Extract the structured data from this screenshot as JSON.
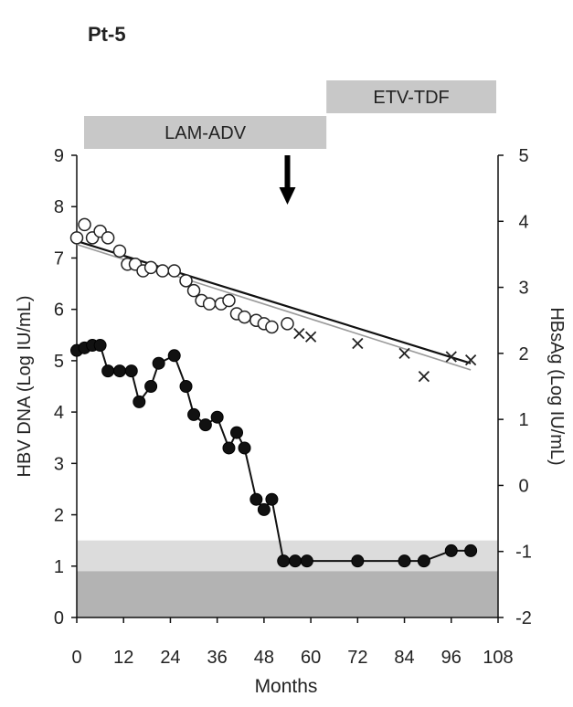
{
  "chart_data": {
    "type": "scatter",
    "title": "Pt-5",
    "xlabel": "Months",
    "ylabel_left": "HBV DNA (Log IU/mL)",
    "ylabel_right": "HBsAg (Log IU/mL)",
    "xlim": [
      0,
      108
    ],
    "xticks": [
      0,
      12,
      24,
      36,
      48,
      60,
      72,
      84,
      96,
      108
    ],
    "ylim_left": [
      0,
      9
    ],
    "yticks_left": [
      0,
      1,
      2,
      3,
      4,
      5,
      6,
      7,
      8,
      9
    ],
    "ylim_right": [
      -2,
      5
    ],
    "yticks_right": [
      -2,
      -1,
      0,
      1,
      2,
      3,
      4,
      5
    ],
    "grid": false,
    "treatments": [
      {
        "label": "LAM-ADV",
        "start": 0,
        "end": 64
      },
      {
        "label": "ETV-TDF",
        "start": 64,
        "end": 108
      }
    ],
    "arrow_at_month": 54,
    "detection_bands_left": {
      "outer": [
        0,
        1.5
      ],
      "inner": [
        0,
        0.9
      ]
    },
    "series": [
      {
        "key": "hbv_dna",
        "axis": "left",
        "marker": "filled-circle",
        "connected": true,
        "x": [
          0,
          2,
          4,
          6,
          8,
          11,
          14,
          16,
          19,
          21,
          25,
          28,
          30,
          33,
          36,
          39,
          41,
          43,
          46,
          48,
          50,
          53,
          56,
          59,
          72,
          84,
          89,
          96,
          101
        ],
        "y": [
          5.2,
          5.25,
          5.3,
          5.3,
          4.8,
          4.8,
          4.8,
          4.2,
          4.5,
          4.95,
          5.1,
          4.5,
          3.95,
          3.75,
          3.9,
          3.3,
          3.6,
          3.3,
          2.3,
          2.1,
          2.3,
          1.1,
          1.1,
          1.1,
          1.1,
          1.1,
          1.1,
          1.3,
          1.3
        ]
      },
      {
        "key": "hbsag_pre",
        "axis": "right",
        "marker": "open-circle",
        "connected": false,
        "x": [
          0,
          2,
          4,
          6,
          8,
          11,
          13,
          15,
          17,
          19,
          22,
          25,
          28,
          30,
          32,
          34,
          37,
          39,
          41,
          43,
          46,
          48,
          50,
          54
        ],
        "y": [
          3.75,
          3.95,
          3.75,
          3.85,
          3.75,
          3.55,
          3.35,
          3.35,
          3.25,
          3.3,
          3.25,
          3.25,
          3.1,
          2.95,
          2.8,
          2.75,
          2.75,
          2.8,
          2.6,
          2.55,
          2.5,
          2.45,
          2.4,
          2.45
        ]
      },
      {
        "key": "hbsag_post",
        "axis": "right",
        "marker": "cross",
        "connected": false,
        "x": [
          57,
          60,
          72,
          84,
          89,
          96,
          101
        ],
        "y": [
          2.3,
          2.25,
          2.15,
          2.0,
          1.65,
          1.95,
          1.9
        ]
      }
    ],
    "trendlines_right": [
      {
        "from": [
          0,
          3.7
        ],
        "to": [
          101,
          1.85
        ],
        "style": "dark"
      },
      {
        "from": [
          0,
          3.65
        ],
        "to": [
          101,
          1.75
        ],
        "style": "light"
      }
    ]
  }
}
